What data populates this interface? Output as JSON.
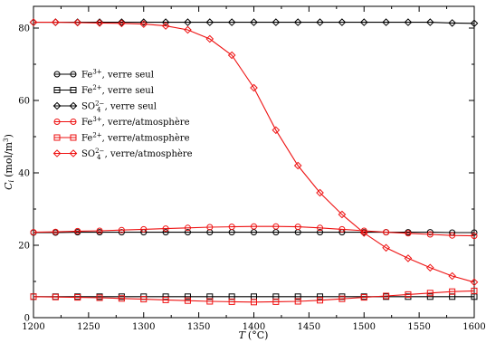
{
  "chart_data": {
    "type": "line",
    "title": "",
    "xlabel": {
      "var": "T",
      "unit": "(°C)"
    },
    "ylabel": {
      "var": "C",
      "sub": "i",
      "unit": "(mol/m",
      "sup": "3",
      "close": ")"
    },
    "xlim": [
      1200,
      1600
    ],
    "ylim": [
      0,
      86
    ],
    "xticks": [
      1200,
      1250,
      1300,
      1350,
      1400,
      1450,
      1500,
      1550,
      1600
    ],
    "yticks": [
      0,
      20,
      40,
      60,
      80
    ],
    "grid": false,
    "legend_position": "upper-left",
    "x": [
      1200,
      1220,
      1240,
      1260,
      1280,
      1300,
      1320,
      1340,
      1360,
      1380,
      1400,
      1420,
      1440,
      1460,
      1480,
      1500,
      1520,
      1540,
      1560,
      1580,
      1600
    ],
    "series": [
      {
        "name": "Fe³⁺, verre seul",
        "color": "#000000",
        "marker": "circle",
        "values": [
          23.5,
          23.5,
          23.6,
          23.6,
          23.6,
          23.6,
          23.6,
          23.6,
          23.6,
          23.6,
          23.6,
          23.6,
          23.6,
          23.6,
          23.6,
          23.6,
          23.6,
          23.6,
          23.6,
          23.5,
          23.5
        ]
      },
      {
        "name": "Fe²⁺, verre seul",
        "color": "#000000",
        "marker": "square",
        "values": [
          5.8,
          5.8,
          5.8,
          5.8,
          5.8,
          5.8,
          5.8,
          5.8,
          5.8,
          5.8,
          5.8,
          5.8,
          5.8,
          5.8,
          5.8,
          5.8,
          5.8,
          5.8,
          5.8,
          5.8,
          5.8
        ]
      },
      {
        "name": "SO₄²⁻, verre seul",
        "color": "#000000",
        "marker": "diamond",
        "values": [
          81.6,
          81.6,
          81.6,
          81.6,
          81.6,
          81.6,
          81.6,
          81.6,
          81.6,
          81.6,
          81.6,
          81.6,
          81.6,
          81.6,
          81.6,
          81.6,
          81.6,
          81.6,
          81.6,
          81.4,
          81.3
        ]
      },
      {
        "name": "Fe³⁺, verre/atmosphère",
        "color": "#ee1111",
        "marker": "circle",
        "values": [
          23.6,
          23.7,
          23.9,
          24.0,
          24.2,
          24.4,
          24.6,
          24.8,
          25.0,
          25.1,
          25.2,
          25.2,
          25.1,
          24.8,
          24.4,
          24.0,
          23.6,
          23.3,
          23.0,
          22.7,
          22.6
        ]
      },
      {
        "name": "Fe²⁺, verre/atmosphère",
        "color": "#ee1111",
        "marker": "square",
        "values": [
          5.8,
          5.7,
          5.6,
          5.5,
          5.3,
          5.1,
          4.9,
          4.7,
          4.5,
          4.4,
          4.3,
          4.4,
          4.5,
          4.8,
          5.2,
          5.6,
          6.0,
          6.4,
          6.8,
          7.2,
          7.4
        ]
      },
      {
        "name": "SO₄²⁻, verre/atmosphère",
        "color": "#ee1111",
        "marker": "diamond",
        "values": [
          81.6,
          81.6,
          81.5,
          81.4,
          81.3,
          81.1,
          80.6,
          79.5,
          77.0,
          72.5,
          63.5,
          51.8,
          42.0,
          34.5,
          28.5,
          23.4,
          19.3,
          16.4,
          13.8,
          11.5,
          9.8
        ]
      }
    ]
  },
  "legend": [
    {
      "sym": "Fe",
      "sup": "3+",
      "sub": "",
      "rest": ", verre seul"
    },
    {
      "sym": "Fe",
      "sup": "2+",
      "sub": "",
      "rest": ", verre seul"
    },
    {
      "sym": "SO",
      "sup": "2−",
      "sub": "4",
      "rest": ", verre seul"
    },
    {
      "sym": "Fe",
      "sup": "3+",
      "sub": "",
      "rest": ", verre/atmosphère"
    },
    {
      "sym": "Fe",
      "sup": "2+",
      "sub": "",
      "rest": ", verre/atmosphère"
    },
    {
      "sym": "SO",
      "sup": "2−",
      "sub": "4",
      "rest": ", verre/atmosphère"
    }
  ]
}
